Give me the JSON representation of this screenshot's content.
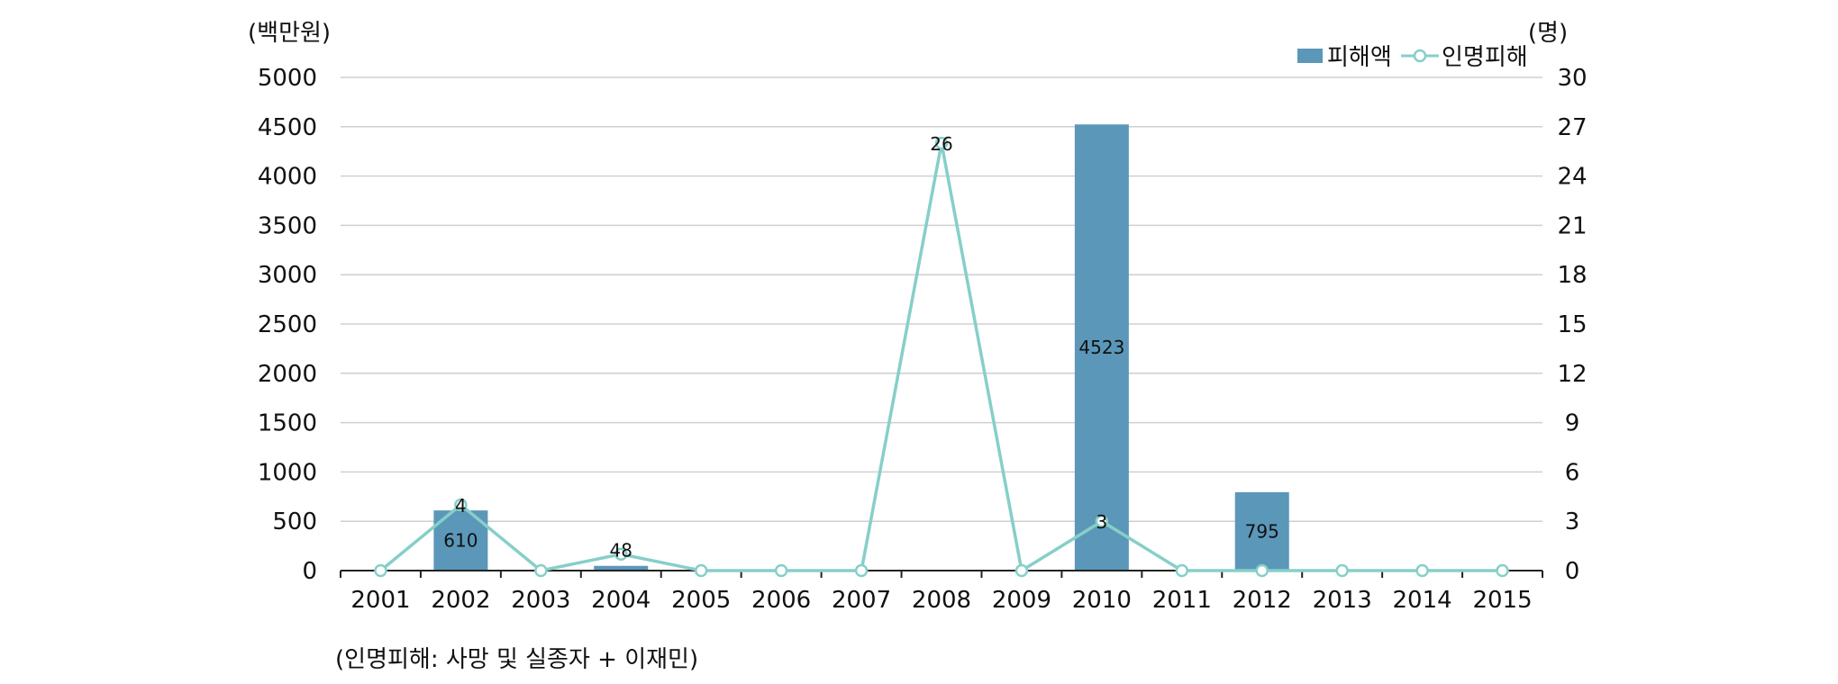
{
  "chart_data": {
    "type": "bar",
    "categories": [
      "2001",
      "2002",
      "2003",
      "2004",
      "2005",
      "2006",
      "2007",
      "2008",
      "2009",
      "2010",
      "2011",
      "2012",
      "2013",
      "2014",
      "2015"
    ],
    "series": [
      {
        "name": "피해액",
        "kind": "bar",
        "axis": "left",
        "values": [
          0,
          610,
          0,
          48,
          0,
          0,
          0,
          0,
          0,
          4523,
          0,
          795,
          0,
          0,
          0
        ]
      },
      {
        "name": "인명피해",
        "kind": "line",
        "axis": "right",
        "values": [
          0,
          4,
          0,
          1,
          0,
          0,
          0,
          26,
          0,
          3,
          0,
          0,
          0,
          0,
          0
        ]
      }
    ],
    "data_labels": [
      {
        "series": "피해액",
        "category": "2002",
        "text": "610"
      },
      {
        "series": "피해액",
        "category": "2004",
        "text": "48"
      },
      {
        "series": "피해액",
        "category": "2010",
        "text": "4523"
      },
      {
        "series": "피해액",
        "category": "2012",
        "text": "795"
      },
      {
        "series": "인명피해",
        "category": "2002",
        "text": "4"
      },
      {
        "series": "인명피해",
        "category": "2008",
        "text": "26"
      },
      {
        "series": "인명피해",
        "category": "2010",
        "text": "3"
      }
    ],
    "left_axis": {
      "unit_label": "(백만원)",
      "ylim": [
        0,
        5000
      ],
      "ticks": [
        "0",
        "500",
        "1000",
        "1500",
        "2000",
        "2500",
        "3000",
        "3500",
        "4000",
        "4500",
        "5000"
      ]
    },
    "right_axis": {
      "unit_label": "(명)",
      "ylim": [
        0,
        30
      ],
      "ticks": [
        "0",
        "3",
        "6",
        "9",
        "12",
        "15",
        "18",
        "21",
        "24",
        "27",
        "30"
      ]
    },
    "grid": true,
    "legend_position": "top-right",
    "colors": {
      "bar": "#5b97b9",
      "line": "#86cfc9"
    }
  },
  "footnote": "(인명피해: 사망 및 실종자 + 이재민)"
}
